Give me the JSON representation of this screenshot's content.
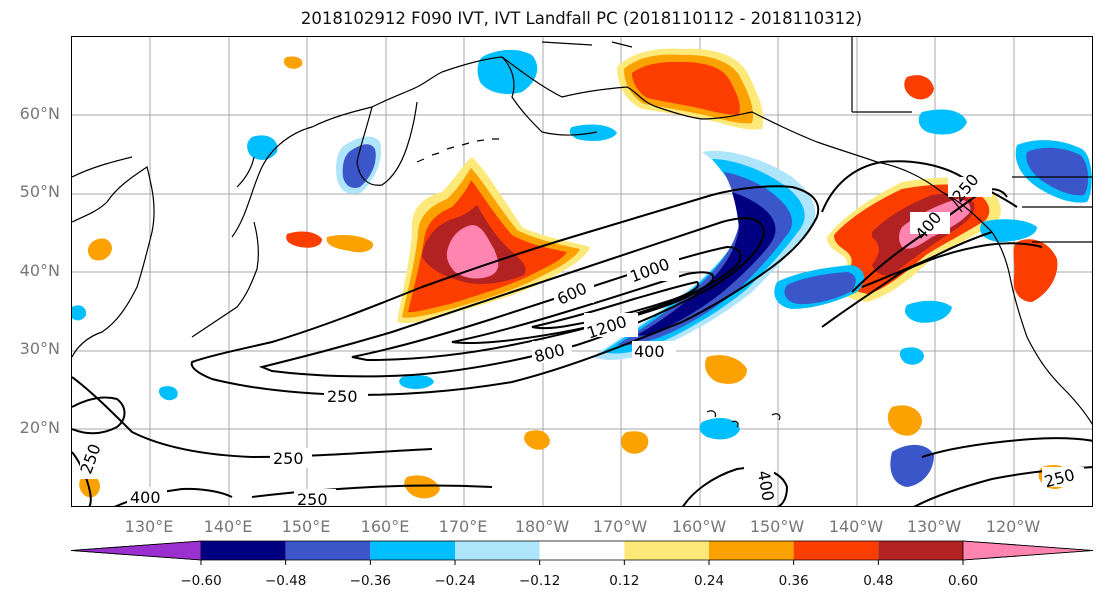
{
  "title": "2018102912 F090 IVT, IVT Landfall PC (2018110112 - 2018110312)",
  "lat_labels": [
    "60°N",
    "50°N",
    "40°N",
    "30°N",
    "20°N"
  ],
  "lon_labels": [
    "130°E",
    "140°E",
    "150°E",
    "160°E",
    "170°E",
    "180°W",
    "170°W",
    "160°W",
    "150°W",
    "140°W",
    "130°W",
    "120°W"
  ],
  "contour_labels": [
    "250",
    "250",
    "250",
    "250",
    "400",
    "400",
    "400",
    "400",
    "600",
    "800",
    "1000",
    "1200",
    "250",
    "250"
  ],
  "colorbar": {
    "tick_labels": [
      "−0.60",
      "−0.48",
      "−0.36",
      "−0.24",
      "−0.12",
      "0.12",
      "0.24",
      "0.36",
      "0.48",
      "0.60"
    ],
    "colors": [
      "#9b30d0",
      "#000080",
      "#3a56c8",
      "#00bfff",
      "#afe5fb",
      "#ffffff",
      "#fde97a",
      "#fba100",
      "#fc3d00",
      "#b22222",
      "#ff85b0"
    ]
  },
  "colors": {
    "coast": "#000000",
    "grid": "#a8a8a8",
    "contour": "#000000"
  }
}
